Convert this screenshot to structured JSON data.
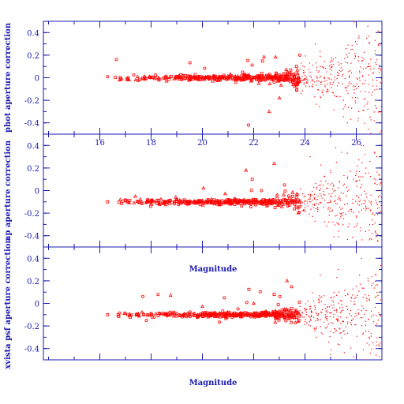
{
  "colors": {
    "axis": "#1a1ab0",
    "points": "#ff0000",
    "background": "#ffffff"
  },
  "chart_data": [
    {
      "type": "scatter",
      "name": "top-panel",
      "ylabel": "phot aperture correction",
      "xlabel": "",
      "xlim": [
        13.8,
        27.0
      ],
      "ylim": [
        -0.5,
        0.5
      ],
      "x_ticks": [
        16,
        18,
        20,
        22,
        24,
        26
      ],
      "y_ticks": [
        -0.4,
        -0.2,
        0,
        0.2,
        0.4
      ],
      "x_tick_labels": [
        "16",
        "18",
        "20",
        "22",
        "24",
        "26"
      ],
      "y_tick_labels": [
        "-0.4",
        "-0.2",
        "0",
        "0.2",
        "0.4"
      ],
      "x_tick_labels_visible": true,
      "offset": 0.0,
      "bright_spread": 0.02,
      "faint_spread": 0.45,
      "points": [
        [
          16.3,
          0.01
        ],
        [
          16.8,
          -0.01
        ],
        [
          17.1,
          0.0
        ],
        [
          17.4,
          -0.02
        ],
        [
          17.7,
          -0.01
        ],
        [
          18.0,
          0.0
        ],
        [
          18.3,
          -0.02
        ],
        [
          18.6,
          -0.03
        ],
        [
          18.9,
          -0.01
        ],
        [
          19.2,
          0.0
        ],
        [
          19.5,
          -0.02
        ],
        [
          19.8,
          -0.01
        ],
        [
          20.1,
          0.0
        ],
        [
          20.4,
          -0.03
        ],
        [
          20.7,
          -0.02
        ],
        [
          21.0,
          -0.01
        ],
        [
          21.3,
          -0.04
        ],
        [
          21.6,
          -0.02
        ],
        [
          21.9,
          -0.03
        ],
        [
          22.2,
          -0.05
        ],
        [
          22.5,
          0.02
        ],
        [
          22.8,
          -0.04
        ],
        [
          23.1,
          -0.02
        ],
        [
          23.4,
          0.03
        ],
        [
          23.7,
          -0.06
        ],
        [
          24.0,
          0.05
        ],
        [
          24.3,
          -0.08
        ],
        [
          24.6,
          0.1
        ],
        [
          24.9,
          -0.12
        ],
        [
          25.2,
          0.18
        ],
        [
          25.5,
          -0.2
        ],
        [
          25.8,
          0.25
        ],
        [
          26.1,
          -0.3
        ],
        [
          26.4,
          0.35
        ],
        [
          26.7,
          -0.38
        ],
        [
          21.8,
          -0.42
        ],
        [
          22.6,
          -0.3
        ],
        [
          23.0,
          -0.18
        ],
        [
          23.8,
          0.2
        ],
        [
          24.4,
          0.3
        ]
      ]
    },
    {
      "type": "scatter",
      "name": "middle-panel",
      "ylabel": "ap aperture correction",
      "xlabel": "Magnitude",
      "xlim": [
        13.8,
        27.0
      ],
      "ylim": [
        -0.5,
        0.5
      ],
      "x_ticks": [
        16,
        18,
        20,
        22,
        24,
        26
      ],
      "y_ticks": [
        -0.4,
        -0.2,
        0,
        0.2,
        0.4
      ],
      "x_tick_labels": [],
      "y_tick_labels": [
        "-0.4",
        "-0.2",
        "0",
        "0.2",
        "0.4"
      ],
      "x_tick_labels_visible": false,
      "offset": -0.1,
      "bright_spread": 0.02,
      "faint_spread": 0.45,
      "points": [
        [
          16.3,
          -0.1
        ],
        [
          17.0,
          -0.09
        ],
        [
          17.5,
          -0.1
        ],
        [
          18.0,
          -0.09
        ],
        [
          18.5,
          -0.1
        ],
        [
          19.0,
          -0.08
        ],
        [
          19.5,
          -0.1
        ],
        [
          20.0,
          -0.09
        ],
        [
          20.5,
          -0.1
        ],
        [
          21.0,
          -0.1
        ],
        [
          21.5,
          -0.09
        ],
        [
          22.0,
          -0.11
        ],
        [
          22.5,
          -0.1
        ],
        [
          23.0,
          -0.12
        ],
        [
          23.5,
          -0.1
        ],
        [
          24.0,
          -0.05
        ],
        [
          24.5,
          -0.15
        ],
        [
          25.0,
          0.05
        ],
        [
          25.5,
          -0.25
        ],
        [
          26.0,
          0.15
        ],
        [
          26.5,
          -0.35
        ],
        [
          21.7,
          0.18
        ],
        [
          22.3,
          0.0
        ],
        [
          22.8,
          0.24
        ],
        [
          23.2,
          0.05
        ],
        [
          24.2,
          0.3
        ],
        [
          25.2,
          0.38
        ],
        [
          26.2,
          0.4
        ]
      ]
    },
    {
      "type": "scatter",
      "name": "bottom-panel",
      "ylabel": "xvista psf aperture correction",
      "xlabel": "Magnitude",
      "xlim": [
        13.8,
        27.0
      ],
      "ylim": [
        -0.5,
        0.5
      ],
      "x_ticks": [
        16,
        18,
        20,
        22,
        24,
        26
      ],
      "y_ticks": [
        -0.4,
        -0.2,
        0,
        0.2,
        0.4
      ],
      "x_tick_labels": [],
      "y_tick_labels": [
        "-0.4",
        "-0.2",
        "0",
        "0.2",
        "0.4"
      ],
      "x_tick_labels_visible": false,
      "offset": -0.1,
      "bright_spread": 0.02,
      "faint_spread": 0.45,
      "points": [
        [
          16.3,
          -0.1
        ],
        [
          17.0,
          -0.09
        ],
        [
          17.5,
          -0.1
        ],
        [
          18.0,
          -0.09
        ],
        [
          18.5,
          -0.1
        ],
        [
          19.0,
          -0.09
        ],
        [
          19.5,
          -0.1
        ],
        [
          20.0,
          -0.1
        ],
        [
          20.5,
          -0.09
        ],
        [
          21.0,
          -0.1
        ],
        [
          21.5,
          -0.1
        ],
        [
          22.0,
          -0.1
        ],
        [
          22.5,
          -0.09
        ],
        [
          23.0,
          -0.11
        ],
        [
          23.5,
          -0.12
        ],
        [
          24.0,
          -0.05
        ],
        [
          24.5,
          -0.15
        ],
        [
          25.0,
          0.05
        ],
        [
          25.5,
          -0.25
        ],
        [
          26.0,
          0.15
        ],
        [
          26.5,
          -0.3
        ],
        [
          22.0,
          0.0
        ],
        [
          22.8,
          0.08
        ],
        [
          23.3,
          0.2
        ],
        [
          24.6,
          0.25
        ],
        [
          25.3,
          0.3
        ],
        [
          26.2,
          0.4
        ]
      ]
    }
  ]
}
